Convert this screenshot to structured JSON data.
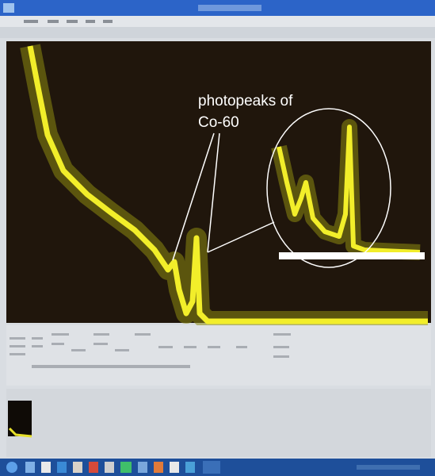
{
  "annotation": {
    "lines": [
      "photopeaks of",
      "Co-60"
    ]
  }
}
